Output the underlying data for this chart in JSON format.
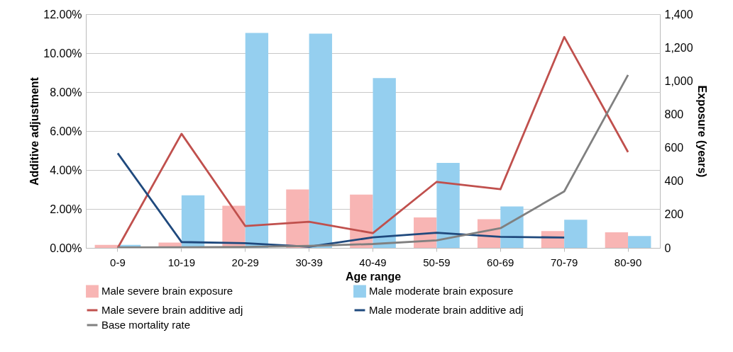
{
  "chart_data": {
    "type": "bar",
    "xlabel": "Age range",
    "ylabel": "Additive adjustment",
    "y2label": "Exposure (years)",
    "categories": [
      "0-9",
      "10-19",
      "20-29",
      "30-39",
      "40-49",
      "50-59",
      "60-69",
      "70-79",
      "80-90"
    ],
    "series": [
      {
        "name": "Male severe brain exposure",
        "axis": "y2",
        "color": "#f8b5b4",
        "values": [
          18,
          32,
          252,
          350,
          319,
          182,
          172,
          101,
          93
        ]
      },
      {
        "name": "Male moderate brain exposure",
        "axis": "y2",
        "color": "#95cfef",
        "values": [
          18,
          315,
          1288,
          1283,
          1017,
          509,
          248,
          169,
          71
        ]
      },
      {
        "name": "Male severe brain additive adj",
        "type": "line",
        "color": "#c0504d",
        "values": [
          0,
          5.86,
          1.12,
          1.34,
          0.76,
          3.39,
          3.01,
          10.83,
          4.92
        ]
      },
      {
        "name": "Male moderate brain additive adj",
        "type": "line",
        "color": "#1f497d",
        "values": [
          4.86,
          0.3,
          0.24,
          0.06,
          0.54,
          0.78,
          0.57,
          0.53,
          null
        ]
      },
      {
        "name": "Base mortality rate",
        "type": "line",
        "color": "#808080",
        "values": [
          0.02,
          0.03,
          0.05,
          0.1,
          0.2,
          0.39,
          1.01,
          2.9,
          8.88
        ]
      }
    ],
    "ylim": [
      0,
      12
    ],
    "yticks": [
      {
        "value": 0,
        "label": "0.00%"
      },
      {
        "value": 2,
        "label": "2.00%"
      },
      {
        "value": 4,
        "label": "4.00%"
      },
      {
        "value": 6,
        "label": "6.00%"
      },
      {
        "value": 8,
        "label": "8.00%"
      },
      {
        "value": 10,
        "label": "10.00%"
      },
      {
        "value": 12,
        "label": "12.00%"
      }
    ],
    "y2lim": [
      0,
      1400
    ],
    "y2ticks": [
      0,
      200,
      400,
      600,
      800,
      {
        "value": 1000,
        "label": "1,000"
      },
      {
        "value": 1200,
        "label": "1,200"
      },
      {
        "value": 1400,
        "label": "1,400"
      }
    ],
    "grid": "y",
    "legend": "bottom"
  }
}
